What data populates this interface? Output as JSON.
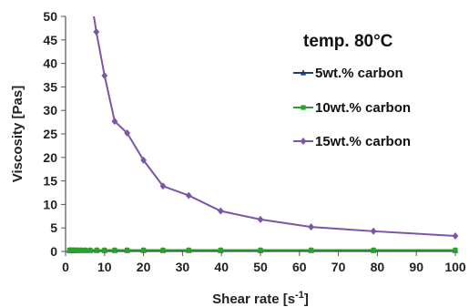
{
  "chart_data": {
    "type": "line",
    "annotation": "temp. 80°C",
    "xlabel": "Shear rate [s",
    "xlabel_sup": "-1",
    "xlabel_end": "]",
    "ylabel": "Viscosity [Pas]",
    "xlim": [
      0,
      100
    ],
    "ylim": [
      0,
      50
    ],
    "xticks": [
      0,
      10,
      20,
      30,
      40,
      50,
      60,
      70,
      80,
      90,
      100
    ],
    "yticks": [
      0,
      5,
      10,
      15,
      20,
      25,
      30,
      35,
      40,
      45,
      50
    ],
    "legend_position": "right",
    "series": [
      {
        "name": "5wt.% carbon",
        "color": "#1f3d73",
        "marker": "triangle",
        "x": [
          1,
          1.3,
          1.6,
          2,
          2.5,
          3.2,
          4,
          5,
          6.3,
          8,
          10,
          12.6,
          15.8,
          20,
          25,
          31.6,
          39.8,
          50,
          63,
          79,
          100
        ],
        "y": [
          0.2,
          0.2,
          0.2,
          0.2,
          0.2,
          0.2,
          0.2,
          0.2,
          0.2,
          0.2,
          0.2,
          0.2,
          0.2,
          0.2,
          0.2,
          0.2,
          0.2,
          0.2,
          0.2,
          0.2,
          0.2
        ]
      },
      {
        "name": "10wt.% carbon",
        "color": "#2ca02c",
        "marker": "square",
        "x": [
          1,
          1.3,
          1.6,
          2,
          2.5,
          3.2,
          4,
          5,
          6.3,
          8,
          10,
          12.6,
          15.8,
          20,
          25,
          31.6,
          39.8,
          50,
          63,
          79,
          100
        ],
        "y": [
          0.3,
          0.3,
          0.3,
          0.3,
          0.3,
          0.3,
          0.3,
          0.3,
          0.3,
          0.3,
          0.3,
          0.3,
          0.3,
          0.3,
          0.3,
          0.3,
          0.3,
          0.3,
          0.3,
          0.3,
          0.3
        ]
      },
      {
        "name": "15wt.% carbon",
        "color": "#7a56a8",
        "marker": "diamond",
        "x": [
          6.3,
          7.9,
          10,
          12.6,
          15.8,
          20,
          25,
          31.6,
          39.8,
          50,
          63,
          79,
          100
        ],
        "y": [
          55,
          46.7,
          37.4,
          27.7,
          25.2,
          19.4,
          13.9,
          11.9,
          8.6,
          6.8,
          5.2,
          4.3,
          3.3
        ]
      }
    ]
  }
}
